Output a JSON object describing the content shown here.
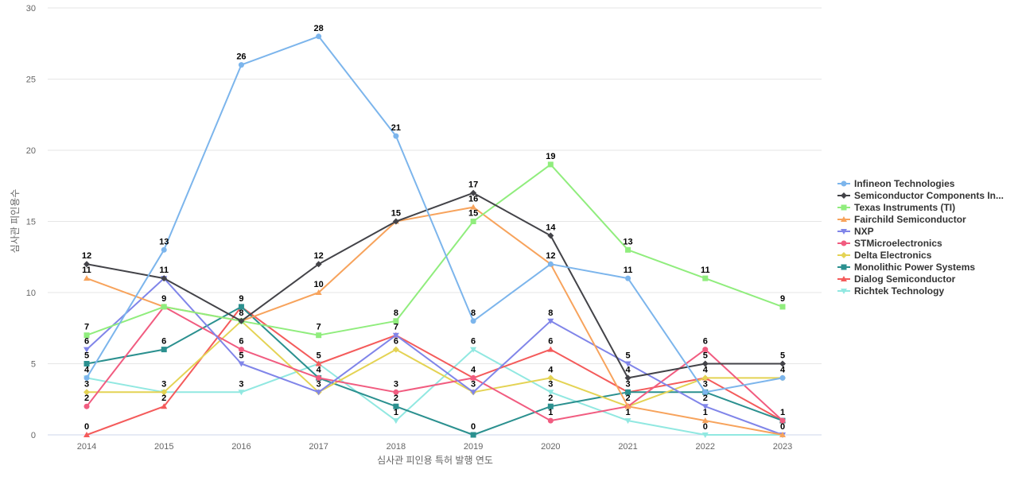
{
  "chart_data": {
    "type": "line",
    "title": "",
    "xlabel": "심사관 피인용 특허 발행 연도",
    "ylabel": "심사관 피인용수",
    "x": [
      "2014",
      "2015",
      "2016",
      "2017",
      "2018",
      "2019",
      "2020",
      "2021",
      "2022",
      "2023"
    ],
    "ylim": [
      0,
      30
    ],
    "yticks": [
      0,
      5,
      10,
      15,
      20,
      25,
      30
    ],
    "grid": true,
    "legend_position": "right",
    "series": [
      {
        "name": "Infineon Technologies",
        "color": "#7cb5ec",
        "marker": "circle",
        "values": [
          4,
          13,
          26,
          28,
          21,
          8,
          12,
          11,
          3,
          4
        ]
      },
      {
        "name": "Semiconductor Components In...",
        "color": "#434348",
        "marker": "diamond",
        "values": [
          12,
          11,
          8,
          12,
          15,
          17,
          14,
          4,
          5,
          5
        ]
      },
      {
        "name": "Texas Instruments (TI)",
        "color": "#90ed7d",
        "marker": "square",
        "values": [
          7,
          9,
          8,
          7,
          8,
          15,
          19,
          13,
          11,
          9
        ]
      },
      {
        "name": "Fairchild Semiconductor",
        "color": "#f7a35c",
        "marker": "triangle",
        "values": [
          11,
          9,
          8,
          10,
          15,
          16,
          12,
          2,
          1,
          0
        ]
      },
      {
        "name": "NXP",
        "color": "#8085e9",
        "marker": "triangle-down",
        "values": [
          6,
          11,
          5,
          3,
          7,
          3,
          8,
          5,
          2,
          0
        ]
      },
      {
        "name": "STMicroelectronics",
        "color": "#f15c80",
        "marker": "circle",
        "values": [
          2,
          9,
          6,
          4,
          3,
          4,
          1,
          2,
          6,
          1
        ]
      },
      {
        "name": "Delta Electronics",
        "color": "#e4d354",
        "marker": "diamond",
        "values": [
          3,
          3,
          8,
          3,
          6,
          3,
          4,
          2,
          4,
          4
        ]
      },
      {
        "name": "Monolithic Power Systems",
        "color": "#2b908f",
        "marker": "square",
        "values": [
          5,
          6,
          9,
          4,
          2,
          0,
          2,
          3,
          3,
          1
        ]
      },
      {
        "name": "Dialog Semiconductor",
        "color": "#f45b5b",
        "marker": "triangle",
        "values": [
          0,
          2,
          9,
          5,
          7,
          4,
          6,
          3,
          4,
          1
        ]
      },
      {
        "name": "Richtek Technology",
        "color": "#91e8e1",
        "marker": "triangle-down",
        "values": [
          4,
          3,
          3,
          5,
          1,
          6,
          3,
          1,
          0,
          0
        ]
      }
    ],
    "data_labels": [
      {
        "series": 0,
        "index": 0,
        "text": "4"
      },
      {
        "series": 1,
        "index": 0,
        "text": "12"
      },
      {
        "series": 2,
        "index": 0,
        "text": "7"
      },
      {
        "series": 3,
        "index": 0,
        "text": "11"
      },
      {
        "series": 4,
        "index": 0,
        "text": "6"
      },
      {
        "series": 5,
        "index": 0,
        "text": "2"
      },
      {
        "series": 6,
        "index": 0,
        "text": "3"
      },
      {
        "series": 7,
        "index": 0,
        "text": "5"
      },
      {
        "series": 8,
        "index": 0,
        "text": "0"
      },
      {
        "series": 0,
        "index": 1,
        "text": "13"
      },
      {
        "series": 1,
        "index": 1,
        "text": "11"
      },
      {
        "series": 2,
        "index": 1,
        "text": "9"
      },
      {
        "series": 7,
        "index": 1,
        "text": "6"
      },
      {
        "series": 6,
        "index": 1,
        "text": "3"
      },
      {
        "series": 8,
        "index": 1,
        "text": "2"
      },
      {
        "series": 0,
        "index": 2,
        "text": "26"
      },
      {
        "series": 7,
        "index": 2,
        "text": "9"
      },
      {
        "series": 2,
        "index": 2,
        "text": "8"
      },
      {
        "series": 5,
        "index": 2,
        "text": "6"
      },
      {
        "series": 4,
        "index": 2,
        "text": "5"
      },
      {
        "series": 9,
        "index": 2,
        "text": "3"
      },
      {
        "series": 0,
        "index": 3,
        "text": "28"
      },
      {
        "series": 1,
        "index": 3,
        "text": "12"
      },
      {
        "series": 3,
        "index": 3,
        "text": "10"
      },
      {
        "series": 2,
        "index": 3,
        "text": "7"
      },
      {
        "series": 8,
        "index": 3,
        "text": "5"
      },
      {
        "series": 5,
        "index": 3,
        "text": "4"
      },
      {
        "series": 4,
        "index": 3,
        "text": "3"
      },
      {
        "series": 1,
        "index": 4,
        "text": "15"
      },
      {
        "series": 0,
        "index": 4,
        "text": "21"
      },
      {
        "series": 2,
        "index": 4,
        "text": "8"
      },
      {
        "series": 8,
        "index": 4,
        "text": "7"
      },
      {
        "series": 6,
        "index": 4,
        "text": "6"
      },
      {
        "series": 5,
        "index": 4,
        "text": "3"
      },
      {
        "series": 7,
        "index": 4,
        "text": "2"
      },
      {
        "series": 9,
        "index": 4,
        "text": "1"
      },
      {
        "series": 1,
        "index": 5,
        "text": "17"
      },
      {
        "series": 3,
        "index": 5,
        "text": "16"
      },
      {
        "series": 2,
        "index": 5,
        "text": "15"
      },
      {
        "series": 0,
        "index": 5,
        "text": "8"
      },
      {
        "series": 9,
        "index": 5,
        "text": "6"
      },
      {
        "series": 5,
        "index": 5,
        "text": "4"
      },
      {
        "series": 4,
        "index": 5,
        "text": "3"
      },
      {
        "series": 7,
        "index": 5,
        "text": "0"
      },
      {
        "series": 2,
        "index": 6,
        "text": "19"
      },
      {
        "series": 1,
        "index": 6,
        "text": "14"
      },
      {
        "series": 0,
        "index": 6,
        "text": "12"
      },
      {
        "series": 4,
        "index": 6,
        "text": "8"
      },
      {
        "series": 8,
        "index": 6,
        "text": "6"
      },
      {
        "series": 6,
        "index": 6,
        "text": "4"
      },
      {
        "series": 9,
        "index": 6,
        "text": "3"
      },
      {
        "series": 7,
        "index": 6,
        "text": "2"
      },
      {
        "series": 5,
        "index": 6,
        "text": "1"
      },
      {
        "series": 2,
        "index": 7,
        "text": "13"
      },
      {
        "series": 0,
        "index": 7,
        "text": "11"
      },
      {
        "series": 4,
        "index": 7,
        "text": "5"
      },
      {
        "series": 1,
        "index": 7,
        "text": "4"
      },
      {
        "series": 8,
        "index": 7,
        "text": "3"
      },
      {
        "series": 3,
        "index": 7,
        "text": "2"
      },
      {
        "series": 9,
        "index": 7,
        "text": "1"
      },
      {
        "series": 2,
        "index": 8,
        "text": "11"
      },
      {
        "series": 5,
        "index": 8,
        "text": "6"
      },
      {
        "series": 1,
        "index": 8,
        "text": "5"
      },
      {
        "series": 6,
        "index": 8,
        "text": "4"
      },
      {
        "series": 0,
        "index": 8,
        "text": "3"
      },
      {
        "series": 4,
        "index": 8,
        "text": "2"
      },
      {
        "series": 3,
        "index": 8,
        "text": "1"
      },
      {
        "series": 9,
        "index": 8,
        "text": "0"
      },
      {
        "series": 2,
        "index": 9,
        "text": "9"
      },
      {
        "series": 1,
        "index": 9,
        "text": "5"
      },
      {
        "series": 6,
        "index": 9,
        "text": "4"
      },
      {
        "series": 8,
        "index": 9,
        "text": "1"
      },
      {
        "series": 3,
        "index": 9,
        "text": "0"
      }
    ]
  }
}
